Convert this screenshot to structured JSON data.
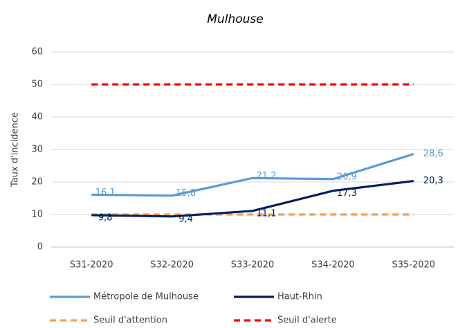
{
  "chart_data": {
    "type": "line",
    "title": "Mulhouse",
    "y_label": "Taux d'incidence",
    "categories": [
      "S31-2020",
      "S32-2020",
      "S33-2020",
      "S34-2020",
      "S35-2020"
    ],
    "series": [
      {
        "name": "Métropole de Mulhouse",
        "color": "#5b9bd5",
        "dashed": false,
        "values": [
          16.1,
          15.8,
          21.2,
          20.9,
          28.6
        ],
        "value_labels": [
          "16,1",
          "15,8",
          "21,2",
          "20,9",
          "28,6"
        ]
      },
      {
        "name": "Haut-Rhin",
        "color": "#002060",
        "dashed": false,
        "values": [
          9.8,
          9.4,
          11.1,
          17.3,
          20.3
        ],
        "value_labels": [
          "9,8",
          "9,4",
          "11,1",
          "17,3",
          "20,3"
        ]
      },
      {
        "name": "Seuil d'attention",
        "color": "#f4a050",
        "dashed": true,
        "values": [
          10,
          10,
          10,
          10,
          10
        ]
      },
      {
        "name": "Seuil d'alerte",
        "color": "#ff0000",
        "dashed": true,
        "values": [
          50,
          50,
          50,
          50,
          50
        ]
      }
    ],
    "ylim": [
      0,
      60
    ],
    "yticks": [
      0,
      10,
      20,
      30,
      40,
      50,
      60
    ],
    "grid": true
  }
}
